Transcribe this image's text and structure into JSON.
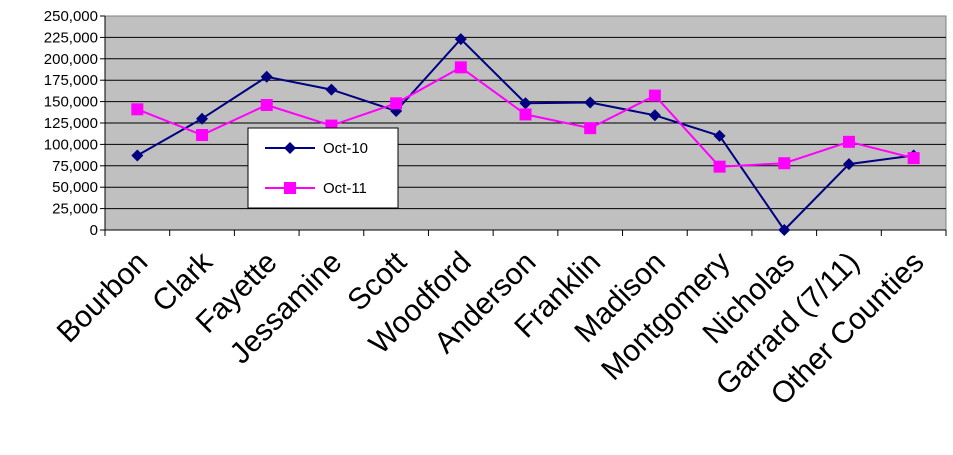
{
  "chart_data": {
    "type": "line",
    "title": "",
    "xlabel": "",
    "ylabel": "",
    "categories": [
      "Bourbon",
      "Clark",
      "Fayette",
      "Jessamine",
      "Scott",
      "Woodford",
      "Anderson",
      "Franklin",
      "Madison",
      "Montgomery",
      "Nicholas",
      "Garrard (7/11)",
      "Other Counties"
    ],
    "ylim": [
      0,
      250000
    ],
    "yticks": [
      0,
      25000,
      50000,
      75000,
      100000,
      125000,
      150000,
      175000,
      200000,
      225000,
      250000
    ],
    "ytick_labels": [
      "0",
      "25,000",
      "50,000",
      "75,000",
      "100,000",
      "125,000",
      "150,000",
      "175,000",
      "200,000",
      "225,000",
      "250,000"
    ],
    "grid": "horizontal",
    "legend_position": "left-center",
    "plot_background": "#c0c0c0",
    "series": [
      {
        "name": "Oct-10",
        "color": "#000080",
        "marker": "diamond",
        "values": [
          87000,
          130000,
          179000,
          164000,
          139000,
          223000,
          148000,
          149000,
          134000,
          110000,
          0,
          77000,
          87000
        ]
      },
      {
        "name": "Oct-11",
        "color": "#ff00ff",
        "marker": "square",
        "values": [
          141000,
          111000,
          146000,
          122000,
          148000,
          190000,
          135000,
          119000,
          157000,
          74000,
          78000,
          103000,
          84000
        ]
      }
    ]
  }
}
